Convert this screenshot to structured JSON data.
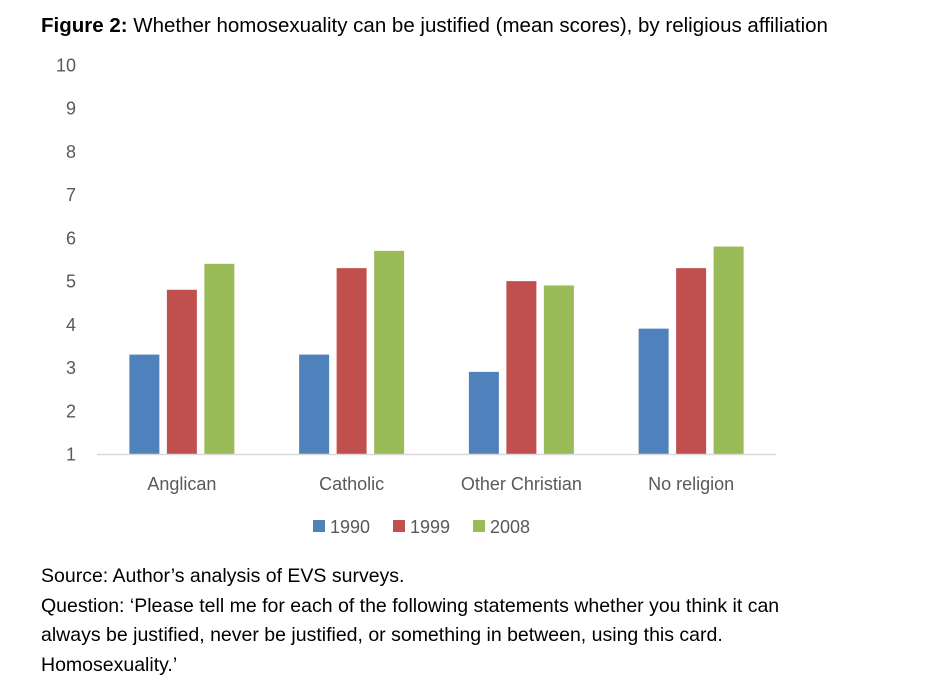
{
  "figure_label": "Figure 2:",
  "figure_title": "Whether homosexuality can be justified (mean scores), by religious affiliation",
  "chart_data": {
    "type": "bar",
    "title": "Whether homosexuality can be justified (mean scores), by religious affiliation",
    "categories": [
      "Anglican",
      "Catholic",
      "Other Christian",
      "No religion"
    ],
    "series": [
      {
        "name": "1990",
        "color": "#4F81BD",
        "values": [
          3.3,
          3.3,
          2.9,
          3.9
        ]
      },
      {
        "name": "1999",
        "color": "#C0504D",
        "values": [
          4.8,
          5.3,
          5.0,
          5.3
        ]
      },
      {
        "name": "2008",
        "color": "#9BBB59",
        "values": [
          5.4,
          5.7,
          4.9,
          5.8
        ]
      }
    ],
    "ylim": [
      1,
      10
    ],
    "yticks": [
      "1",
      "2",
      "3",
      "4",
      "5",
      "6",
      "7",
      "8",
      "9",
      "10"
    ],
    "xlabel": "",
    "ylabel": "",
    "grid": false,
    "legend_position": "bottom"
  },
  "notes": {
    "source": "Source: Author’s analysis of EVS surveys.",
    "question_lines": [
      "Question: ‘Please tell me for each of the following statements whether you think it can",
      "always be justified, never be justified, or something in between, using this card.",
      "Homosexuality.’"
    ]
  }
}
